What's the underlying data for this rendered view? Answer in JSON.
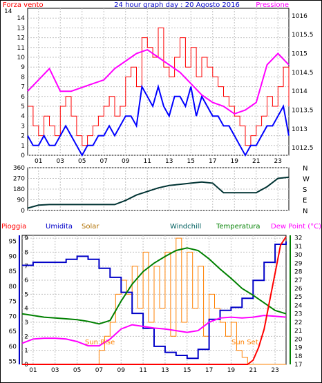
{
  "colors": {
    "wind": "#ff0000",
    "gust": "#0000ff",
    "pressure": "#ff00ff",
    "direction": "#003333",
    "rain": "#ff0000",
    "humidity": "#0000c8",
    "solar": "#ff8000",
    "windchill": "#009090",
    "temperature": "#008000",
    "dewpoint": "#ff00ff",
    "grid": "#c0c0c0",
    "rain_axis": "#ff0000",
    "humidity_axis": "#0000c8",
    "temp_axis": "#008000"
  },
  "chart_data": [
    {
      "type": "line",
      "title": "24 hour graph day : 20 Agosto 2016",
      "left_label": "Forza vento",
      "right_label": "Pressione",
      "x_ticks": [
        "01",
        "03",
        "05",
        "07",
        "09",
        "11",
        "13",
        "15",
        "17",
        "19",
        "21",
        "23"
      ],
      "ylim": [
        0,
        15
      ],
      "y_ticks": [
        0,
        1,
        2,
        3,
        4,
        5,
        6,
        7,
        8,
        9,
        10,
        11,
        12,
        13,
        14
      ],
      "top_tick": "14",
      "y2lim": [
        1012.3,
        1016.2
      ],
      "y2_ticks": [
        "1012.5",
        "1013",
        "1013.5",
        "1014",
        "1014.5",
        "1015",
        "1015.5",
        "1016"
      ],
      "series": [
        {
          "role": "wind",
          "x": [
            0,
            0.5,
            1,
            1.5,
            2,
            2.5,
            3,
            3.5,
            4,
            4.5,
            5,
            5.5,
            6,
            6.5,
            7,
            7.5,
            8,
            8.5,
            9,
            9.5,
            10,
            10.5,
            11,
            11.5,
            12,
            12.5,
            13,
            13.5,
            14,
            14.5,
            15,
            15.5,
            16,
            16.5,
            17,
            17.5,
            18,
            18.5,
            19,
            19.5,
            20,
            20.5,
            21,
            21.5,
            22,
            22.5,
            23,
            23.5,
            24
          ],
          "values": [
            5,
            3,
            2,
            4,
            3,
            2,
            5,
            6,
            4,
            2,
            1,
            2,
            3,
            4,
            5,
            6,
            4,
            5,
            8,
            9,
            7,
            12,
            11,
            10,
            13,
            9,
            8,
            10,
            12,
            9,
            11,
            8,
            10,
            9,
            8,
            7,
            6,
            5,
            4,
            3,
            1,
            2,
            3,
            4,
            6,
            5,
            7,
            9,
            5
          ]
        },
        {
          "role": "gust",
          "x": [
            0,
            0.5,
            1,
            1.5,
            2,
            2.5,
            3,
            3.5,
            4,
            4.5,
            5,
            5.5,
            6,
            6.5,
            7,
            7.5,
            8,
            8.5,
            9,
            9.5,
            10,
            10.5,
            11,
            11.5,
            12,
            12.5,
            13,
            13.5,
            14,
            14.5,
            15,
            15.5,
            16,
            16.5,
            17,
            17.5,
            18,
            18.5,
            19,
            19.5,
            20,
            20.5,
            21,
            21.5,
            22,
            22.5,
            23,
            23.5,
            24
          ],
          "values": [
            2,
            1,
            1,
            2,
            1,
            1,
            2,
            3,
            2,
            1,
            0,
            1,
            1,
            2,
            2,
            3,
            2,
            3,
            4,
            4,
            3,
            7,
            6,
            5,
            7,
            5,
            4,
            6,
            6,
            5,
            7,
            4,
            6,
            5,
            4,
            4,
            3,
            3,
            2,
            1,
            0,
            1,
            1,
            2,
            3,
            3,
            4,
            5,
            2
          ]
        },
        {
          "role": "pressure",
          "x": [
            0,
            1,
            2,
            3,
            4,
            5,
            6,
            7,
            8,
            9,
            10,
            11,
            12,
            13,
            14,
            15,
            16,
            17,
            18,
            19,
            20,
            21,
            22,
            23,
            24
          ],
          "values": [
            1014.0,
            1014.3,
            1014.6,
            1014.0,
            1014.0,
            1014.1,
            1014.2,
            1014.3,
            1014.6,
            1014.8,
            1015.0,
            1015.1,
            1014.9,
            1014.7,
            1014.5,
            1014.2,
            1013.9,
            1013.7,
            1013.6,
            1013.4,
            1013.5,
            1013.7,
            1014.7,
            1015.0,
            1014.7
          ]
        }
      ]
    },
    {
      "type": "line",
      "series_name": "direction",
      "ylim": [
        0,
        360
      ],
      "y_ticks": [
        0,
        90,
        180,
        270,
        360
      ],
      "right_labels": [
        "N",
        "W",
        "S",
        "E",
        "N"
      ],
      "x": [
        0,
        1,
        2,
        3,
        4,
        5,
        6,
        7,
        8,
        9,
        10,
        11,
        12,
        13,
        14,
        15,
        16,
        17,
        18,
        19,
        20,
        21,
        22,
        23,
        24
      ],
      "values": [
        20,
        45,
        50,
        50,
        50,
        50,
        50,
        50,
        50,
        85,
        130,
        160,
        190,
        210,
        220,
        230,
        240,
        230,
        150,
        150,
        150,
        150,
        200,
        270,
        280
      ]
    },
    {
      "type": "line",
      "labels": {
        "rain": "Pioggia",
        "humidity": "Umidita",
        "solar": "Solar",
        "windchill": "Windchill",
        "temperature": "Temperatura",
        "dewpoint": "Dew Point (°C)"
      },
      "annotations": [
        "Sun Rise",
        "Sun Set"
      ],
      "x_ticks": [
        "01",
        "03",
        "05",
        "07",
        "09",
        "11",
        "13",
        "15",
        "17",
        "19",
        "21",
        "23"
      ],
      "rain_ylim": [
        0,
        9.2
      ],
      "rain_ticks": [
        0,
        1,
        2,
        3,
        4,
        5,
        6,
        7,
        8,
        9
      ],
      "humidity_ylim": [
        54,
        97
      ],
      "humidity_ticks": [
        55,
        60,
        65,
        70,
        75,
        80,
        85,
        90,
        95
      ],
      "temp_ylim": [
        17,
        32.3
      ],
      "temp_ticks": [
        17,
        18,
        19,
        20,
        21,
        22,
        23,
        24,
        25,
        26,
        27,
        28,
        29,
        30,
        31,
        32
      ],
      "series": [
        {
          "role": "humidity",
          "x": [
            0,
            1,
            2,
            3,
            4,
            5,
            6,
            7,
            8,
            9,
            10,
            11,
            12,
            13,
            14,
            15,
            16,
            17,
            18,
            19,
            20,
            21,
            22,
            23,
            24
          ],
          "values": [
            87,
            88,
            88,
            88,
            89,
            90,
            89,
            86,
            83,
            78,
            71,
            66,
            60,
            58,
            57,
            56,
            59,
            69,
            72,
            73,
            76,
            82,
            88,
            94,
            95
          ]
        },
        {
          "role": "solar",
          "x": [
            0,
            6,
            7,
            7.5,
            8,
            8.5,
            9,
            9.5,
            10,
            10.5,
            11,
            11.5,
            12,
            12.5,
            13,
            13.5,
            14,
            14.5,
            15,
            15.5,
            16,
            16.5,
            17,
            17.5,
            18,
            18.5,
            19,
            19.5,
            20,
            20.5,
            21,
            24
          ],
          "values": [
            0,
            0,
            1,
            2,
            3,
            5,
            6,
            5,
            7,
            4,
            8,
            3,
            7,
            4,
            8,
            2,
            9,
            3,
            8,
            4,
            7,
            2,
            5,
            4,
            3,
            2,
            3,
            1,
            0.5,
            0,
            0,
            0
          ]
        },
        {
          "role": "temperature",
          "x": [
            0,
            1,
            2,
            3,
            4,
            5,
            6,
            7,
            8,
            9,
            10,
            11,
            12,
            13,
            14,
            15,
            16,
            17,
            18,
            19,
            20,
            21,
            22,
            23,
            24
          ],
          "values": [
            23.0,
            22.8,
            22.6,
            22.5,
            22.4,
            22.3,
            22.1,
            21.8,
            22.2,
            24.5,
            26.5,
            28.0,
            29.0,
            29.8,
            30.5,
            30.8,
            30.5,
            29.5,
            28.3,
            27.2,
            26.0,
            25.2,
            24.3,
            23.4,
            23.0
          ]
        },
        {
          "role": "dewpoint",
          "x": [
            0,
            1,
            2,
            3,
            4,
            5,
            6,
            7,
            8,
            9,
            10,
            11,
            12,
            13,
            14,
            15,
            16,
            17,
            18,
            19,
            20,
            21,
            22,
            23,
            24
          ],
          "values": [
            19.5,
            20.0,
            20.1,
            20.1,
            20.0,
            19.7,
            19.2,
            19.2,
            20.0,
            21.2,
            21.7,
            21.5,
            21.3,
            21.2,
            21.0,
            20.8,
            21.0,
            22.0,
            22.5,
            22.6,
            22.5,
            22.6,
            22.8,
            22.7,
            22.6
          ]
        },
        {
          "role": "rain",
          "x": [
            0,
            1,
            2,
            3,
            4,
            5,
            6,
            7,
            8,
            9,
            10,
            11,
            12,
            13,
            14,
            15,
            16,
            17,
            18,
            19,
            20,
            20.5,
            21,
            21.5,
            22,
            22.5,
            23,
            23.5,
            24
          ],
          "values": [
            0,
            0,
            0,
            0,
            0,
            0,
            0,
            0,
            0,
            0,
            0,
            0,
            0,
            0,
            0,
            0,
            0,
            0,
            0,
            0,
            0,
            0,
            0.3,
            1.2,
            2.5,
            4.5,
            6.5,
            8.5,
            9.1
          ]
        }
      ]
    }
  ]
}
